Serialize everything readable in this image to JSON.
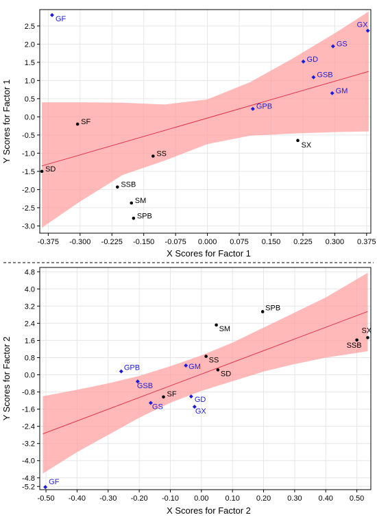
{
  "colors": {
    "band": "#ff9e9e",
    "fit_line": "#e0334a",
    "series_s": "#000000",
    "series_g": "#1b1bd9",
    "grid": "#e6e6e6",
    "divider": "#000000"
  },
  "chart_data": [
    {
      "type": "scatter",
      "xlabel": "X Scores for Factor 1",
      "ylabel": "Y Scores for Factor 1",
      "xlim": [
        -0.395,
        0.385
      ],
      "ylim": [
        -3.2,
        2.95
      ],
      "xticks": [
        -0.375,
        -0.3,
        -0.225,
        -0.15,
        -0.075,
        0.0,
        0.075,
        0.15,
        0.225,
        0.3,
        0.375
      ],
      "xtick_labels": [
        "-0.375",
        "-0.300",
        "-0.225",
        "-0.150",
        "-0.075",
        "0.000",
        "0.075",
        "0.150",
        "0.225",
        "0.300",
        "0.375"
      ],
      "yticks": [
        -3.0,
        -2.5,
        -2.0,
        -1.5,
        -1.0,
        -0.5,
        0.0,
        0.5,
        1.0,
        1.5,
        2.0,
        2.5
      ],
      "ytick_labels": [
        "-3.0",
        "-2.5",
        "-2.0",
        "-1.5",
        "-1.0",
        "-0.5",
        "0.0",
        "0.5",
        "1.0",
        "1.5",
        "2.0",
        "2.5"
      ],
      "grid": true,
      "fit_line": {
        "x": [
          -0.39,
          0.38
        ],
        "y": [
          -1.35,
          1.25
        ]
      },
      "confidence_band": {
        "x": [
          -0.39,
          -0.3,
          -0.2,
          -0.1,
          0.0,
          0.1,
          0.2,
          0.3,
          0.38
        ],
        "upper": [
          0.4,
          0.4,
          0.39,
          0.34,
          0.48,
          0.95,
          1.6,
          2.3,
          2.9
        ],
        "lower": [
          -3.05,
          -2.33,
          -1.6,
          -1.2,
          -0.75,
          -0.52,
          -0.46,
          -0.42,
          -0.4
        ]
      },
      "points": [
        {
          "label": "SD",
          "x": -0.39,
          "y": -1.5,
          "group": "S"
        },
        {
          "label": "SF",
          "x": -0.306,
          "y": -0.2,
          "group": "S"
        },
        {
          "label": "SS",
          "x": -0.128,
          "y": -1.08,
          "group": "S"
        },
        {
          "label": "SSB",
          "x": -0.212,
          "y": -1.93,
          "group": "S"
        },
        {
          "label": "SM",
          "x": -0.179,
          "y": -2.37,
          "group": "S"
        },
        {
          "label": "SPB",
          "x": -0.174,
          "y": -2.79,
          "group": "S"
        },
        {
          "label": "SX",
          "x": 0.213,
          "y": -0.65,
          "group": "S"
        },
        {
          "label": "GF",
          "x": -0.366,
          "y": 2.8,
          "group": "G"
        },
        {
          "label": "GX",
          "x": 0.378,
          "y": 2.37,
          "group": "G"
        },
        {
          "label": "GS",
          "x": 0.296,
          "y": 1.94,
          "group": "G"
        },
        {
          "label": "GD",
          "x": 0.226,
          "y": 1.52,
          "group": "G"
        },
        {
          "label": "GSB",
          "x": 0.25,
          "y": 1.09,
          "group": "G"
        },
        {
          "label": "GM",
          "x": 0.294,
          "y": 0.65,
          "group": "G"
        },
        {
          "label": "GPB",
          "x": 0.107,
          "y": 0.22,
          "group": "G"
        }
      ]
    },
    {
      "type": "scatter",
      "xlabel": "X Scores for Factor 2",
      "ylabel": "Y Scores for Factor 2",
      "xlim": [
        -0.52,
        0.545
      ],
      "ylim": [
        -5.35,
        5.0
      ],
      "xticks": [
        -0.5,
        -0.4,
        -0.3,
        -0.2,
        -0.1,
        0.0,
        0.1,
        0.2,
        0.3,
        0.4,
        0.5
      ],
      "xtick_labels": [
        "-0.50",
        "-0.40",
        "-0.30",
        "-0.20",
        "-0.10",
        "0.00",
        "0.10",
        "0.20",
        "0.30",
        "0.40",
        "0.50"
      ],
      "yticks": [
        -5.2,
        -4.8,
        -4.0,
        -3.2,
        -2.4,
        -1.6,
        -0.8,
        0.0,
        0.8,
        1.6,
        2.4,
        3.2,
        4.0,
        4.8
      ],
      "ytick_labels": [
        "-5.2",
        "-4.8",
        "-4.0",
        "-3.2",
        "-2.4",
        "-1.6",
        "-0.8",
        "0.0",
        "0.8",
        "1.6",
        "2.4",
        "3.2",
        "4.0",
        "4.8"
      ],
      "grid": true,
      "fit_line": {
        "x": [
          -0.51,
          0.535
        ],
        "y": [
          -2.75,
          2.95
        ]
      },
      "confidence_band": {
        "x": [
          -0.51,
          -0.4,
          -0.3,
          -0.2,
          -0.1,
          0.0,
          0.1,
          0.2,
          0.3,
          0.4,
          0.535
        ],
        "upper": [
          -1.0,
          -0.7,
          -0.4,
          -0.05,
          0.4,
          0.9,
          1.5,
          2.2,
          2.9,
          3.6,
          4.75
        ],
        "lower": [
          -4.6,
          -3.6,
          -2.8,
          -2.0,
          -1.3,
          -0.75,
          -0.3,
          0.15,
          0.5,
          0.8,
          1.1
        ]
      },
      "points": [
        {
          "label": "SPB",
          "x": 0.197,
          "y": 2.94,
          "group": "S"
        },
        {
          "label": "SM",
          "x": 0.048,
          "y": 2.32,
          "group": "S"
        },
        {
          "label": "SX",
          "x": 0.535,
          "y": 1.73,
          "group": "S"
        },
        {
          "label": "SSB",
          "x": 0.5,
          "y": 1.62,
          "group": "S"
        },
        {
          "label": "SS",
          "x": 0.015,
          "y": 0.86,
          "group": "S"
        },
        {
          "label": "SD",
          "x": 0.053,
          "y": 0.23,
          "group": "S"
        },
        {
          "label": "SF",
          "x": -0.122,
          "y": -1.03,
          "group": "S"
        },
        {
          "label": "GPB",
          "x": -0.258,
          "y": 0.16,
          "group": "G"
        },
        {
          "label": "GM",
          "x": -0.05,
          "y": 0.43,
          "group": "G"
        },
        {
          "label": "GSB",
          "x": -0.205,
          "y": -0.31,
          "group": "G"
        },
        {
          "label": "GD",
          "x": -0.033,
          "y": -1.01,
          "group": "G"
        },
        {
          "label": "GS",
          "x": -0.163,
          "y": -1.31,
          "group": "G"
        },
        {
          "label": "GX",
          "x": -0.022,
          "y": -1.49,
          "group": "G"
        },
        {
          "label": "GF",
          "x": -0.502,
          "y": -5.23,
          "group": "G"
        }
      ]
    }
  ]
}
